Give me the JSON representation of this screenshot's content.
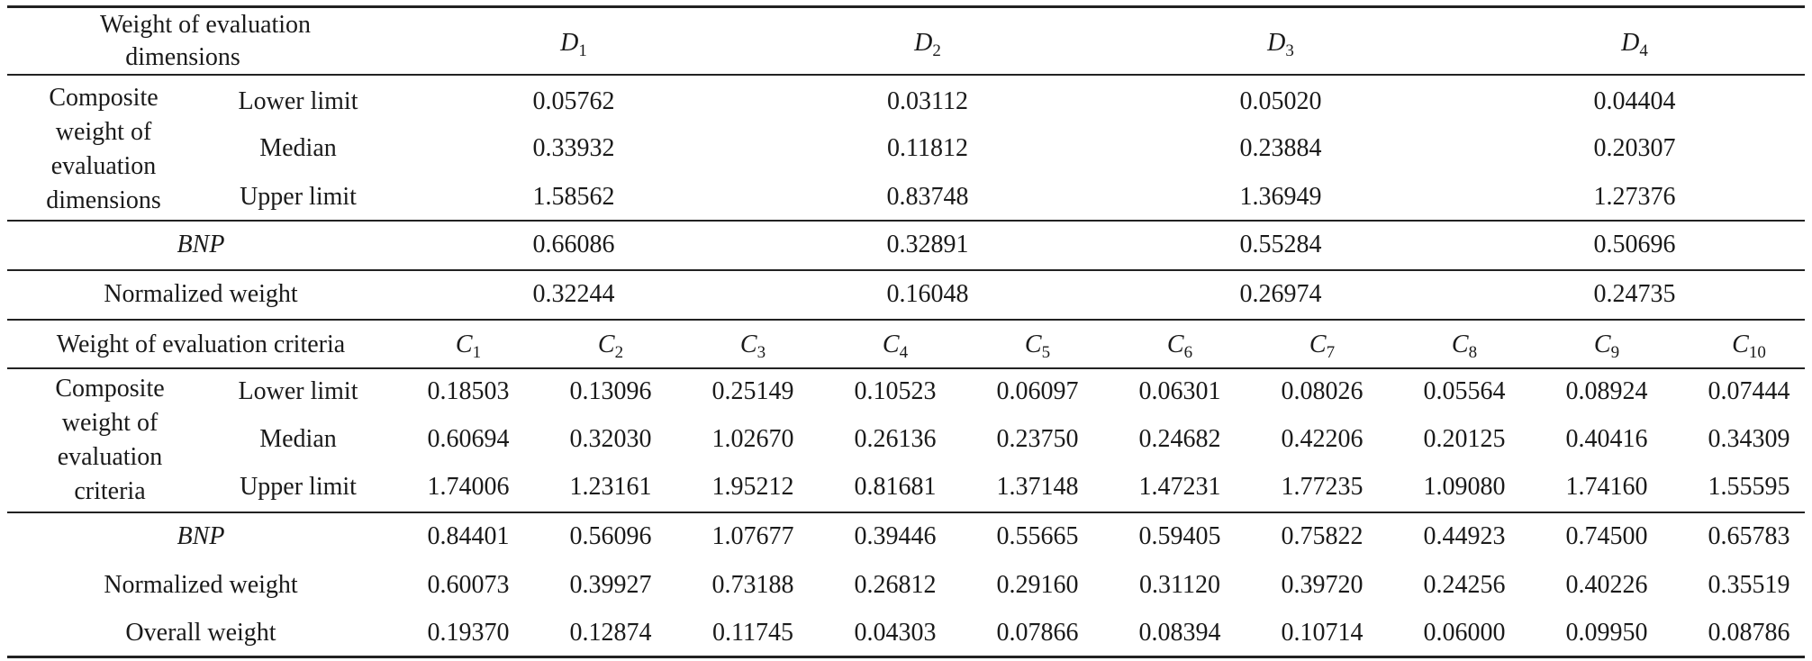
{
  "header_dims": {
    "label_line1": "Weight of evaluation",
    "label_line2": "dimensions",
    "dims": [
      {
        "sym": "D",
        "sub": "1"
      },
      {
        "sym": "D",
        "sub": "2"
      },
      {
        "sym": "D",
        "sub": "3"
      },
      {
        "sym": "D",
        "sub": "4"
      }
    ]
  },
  "composite_dims": {
    "group_lines": [
      "Composite",
      "weight of",
      "evaluation",
      "dimensions"
    ],
    "rows": [
      {
        "label": "Lower limit",
        "values": [
          "0.05762",
          "0.03112",
          "0.05020",
          "0.04404"
        ]
      },
      {
        "label": "Median",
        "values": [
          "0.33932",
          "0.11812",
          "0.23884",
          "0.20307"
        ]
      },
      {
        "label": "Upper limit",
        "values": [
          "1.58562",
          "0.83748",
          "1.36949",
          "1.27376"
        ]
      }
    ]
  },
  "bnp_dims": {
    "label": "BNP",
    "values": [
      "0.66086",
      "0.32891",
      "0.55284",
      "0.50696"
    ]
  },
  "norm_dims": {
    "label": "Normalized weight",
    "values": [
      "0.32244",
      "0.16048",
      "0.26974",
      "0.24735"
    ]
  },
  "header_crit": {
    "label": "Weight of evaluation criteria",
    "crits": [
      {
        "sym": "C",
        "sub": "1"
      },
      {
        "sym": "C",
        "sub": "2"
      },
      {
        "sym": "C",
        "sub": "3"
      },
      {
        "sym": "C",
        "sub": "4"
      },
      {
        "sym": "C",
        "sub": "5"
      },
      {
        "sym": "C",
        "sub": "6"
      },
      {
        "sym": "C",
        "sub": "7"
      },
      {
        "sym": "C",
        "sub": "8"
      },
      {
        "sym": "C",
        "sub": "9"
      },
      {
        "sym": "C",
        "sub": "10"
      }
    ]
  },
  "composite_crit": {
    "group_lines": [
      "Composite",
      "weight of",
      "evaluation",
      "criteria"
    ],
    "rows": [
      {
        "label": "Lower limit",
        "values": [
          "0.18503",
          "0.13096",
          "0.25149",
          "0.10523",
          "0.06097",
          "0.06301",
          "0.08026",
          "0.05564",
          "0.08924",
          "0.07444"
        ]
      },
      {
        "label": "Median",
        "values": [
          "0.60694",
          "0.32030",
          "1.02670",
          "0.26136",
          "0.23750",
          "0.24682",
          "0.42206",
          "0.20125",
          "0.40416",
          "0.34309"
        ]
      },
      {
        "label": "Upper limit",
        "values": [
          "1.74006",
          "1.23161",
          "1.95212",
          "0.81681",
          "1.37148",
          "1.47231",
          "1.77235",
          "1.09080",
          "1.74160",
          "1.55595"
        ]
      }
    ]
  },
  "bottom_crit": [
    {
      "label": "BNP",
      "values": [
        "0.84401",
        "0.56096",
        "1.07677",
        "0.39446",
        "0.55665",
        "0.59405",
        "0.75822",
        "0.44923",
        "0.74500",
        "0.65783"
      ]
    },
    {
      "label": "Normalized weight",
      "values": [
        "0.60073",
        "0.39927",
        "0.73188",
        "0.26812",
        "0.29160",
        "0.31120",
        "0.39720",
        "0.24256",
        "0.40226",
        "0.35519"
      ]
    },
    {
      "label": "Overall weight",
      "values": [
        "0.19370",
        "0.12874",
        "0.11745",
        "0.04303",
        "0.07866",
        "0.08394",
        "0.10714",
        "0.06000",
        "0.09950",
        "0.08786"
      ]
    }
  ]
}
